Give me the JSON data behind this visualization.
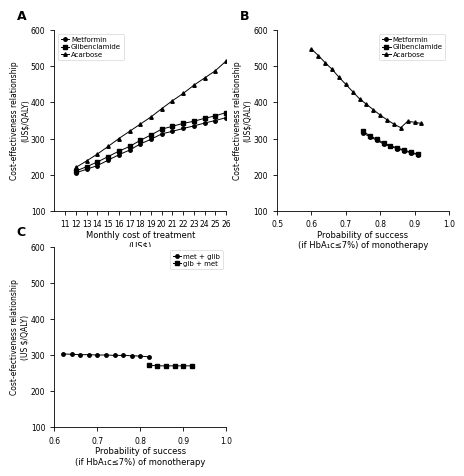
{
  "A": {
    "title": "A",
    "xlabel": "Monthly cost of treatment\n(US$)",
    "ylabel": "Cost-effectiveness relationship\n(US$/QALY)",
    "xlim": [
      10,
      26
    ],
    "ylim": [
      100,
      600
    ],
    "xticks": [
      11,
      12,
      13,
      14,
      15,
      16,
      17,
      18,
      19,
      20,
      21,
      22,
      23,
      24,
      25,
      26
    ],
    "yticks": [
      100,
      200,
      300,
      400,
      500,
      600
    ],
    "metformin_x": [
      12,
      13,
      14,
      15,
      16,
      17,
      18,
      19,
      20,
      21,
      22,
      23,
      24,
      25,
      26
    ],
    "metformin_y": [
      205,
      215,
      225,
      240,
      255,
      268,
      285,
      298,
      313,
      320,
      328,
      335,
      343,
      350,
      358
    ],
    "glibenclamide_x": [
      12,
      13,
      14,
      15,
      16,
      17,
      18,
      19,
      20,
      21,
      22,
      23,
      24,
      25,
      26
    ],
    "glibenclamide_y": [
      210,
      222,
      235,
      250,
      265,
      278,
      295,
      310,
      326,
      334,
      342,
      348,
      356,
      363,
      372
    ],
    "acarbose_x": [
      12,
      13,
      14,
      15,
      16,
      17,
      18,
      19,
      20,
      21,
      22,
      23,
      24,
      25,
      26
    ],
    "acarbose_y": [
      220,
      238,
      257,
      278,
      300,
      320,
      340,
      360,
      383,
      405,
      425,
      448,
      468,
      488,
      515
    ],
    "legend": [
      "Metformin",
      "Glibenclamide",
      "Acarbose"
    ]
  },
  "B": {
    "title": "B",
    "xlabel": "Probability of success\n(if HbA₁c≤7%) of monotherapy",
    "ylabel": "Cost-effectiveness relationship\n(US$/QALY)",
    "xlim": [
      0.5,
      1.0
    ],
    "ylim": [
      100,
      600
    ],
    "xticks": [
      0.5,
      0.6,
      0.7,
      0.8,
      0.9,
      1.0
    ],
    "yticks": [
      100,
      200,
      300,
      400,
      500,
      600
    ],
    "metformin_x": [
      0.75,
      0.77,
      0.79,
      0.81,
      0.83,
      0.85,
      0.87,
      0.89,
      0.91
    ],
    "metformin_y": [
      315,
      305,
      295,
      285,
      278,
      272,
      266,
      260,
      255
    ],
    "glibenclamide_x": [
      0.75,
      0.77,
      0.79,
      0.81,
      0.83,
      0.85,
      0.87,
      0.89,
      0.91
    ],
    "glibenclamide_y": [
      320,
      308,
      298,
      288,
      280,
      274,
      268,
      262,
      257
    ],
    "acarbose_x": [
      0.6,
      0.62,
      0.64,
      0.66,
      0.68,
      0.7,
      0.72,
      0.74,
      0.76,
      0.78,
      0.8,
      0.82,
      0.84,
      0.86,
      0.88,
      0.9,
      0.92
    ],
    "acarbose_y": [
      548,
      530,
      510,
      492,
      470,
      450,
      430,
      410,
      395,
      380,
      365,
      352,
      340,
      330,
      348,
      345,
      342
    ],
    "legend": [
      "Metformin",
      "Glibenclamide",
      "Acarbose"
    ]
  },
  "C": {
    "title": "C",
    "xlabel": "Probability of success\n(if HbA₁c≤7%) of monotherapy",
    "ylabel": "Cost-efectiveness relationship\n(US $/QALY)",
    "xlim": [
      0.6,
      1.0
    ],
    "ylim": [
      100,
      600
    ],
    "xticks": [
      0.6,
      0.7,
      0.8,
      0.9,
      1.0
    ],
    "yticks": [
      100,
      200,
      300,
      400,
      500,
      600
    ],
    "met_glib_x": [
      0.62,
      0.64,
      0.66,
      0.68,
      0.7,
      0.72,
      0.74,
      0.76,
      0.78,
      0.8,
      0.82
    ],
    "met_glib_y": [
      303,
      302,
      301,
      301,
      300,
      300,
      299,
      299,
      298,
      297,
      295
    ],
    "glib_met_x": [
      0.82,
      0.84,
      0.86,
      0.88,
      0.9,
      0.92
    ],
    "glib_met_y": [
      272,
      270,
      270,
      270,
      270,
      270
    ],
    "legend": [
      "met + glib",
      "glb + met"
    ]
  }
}
